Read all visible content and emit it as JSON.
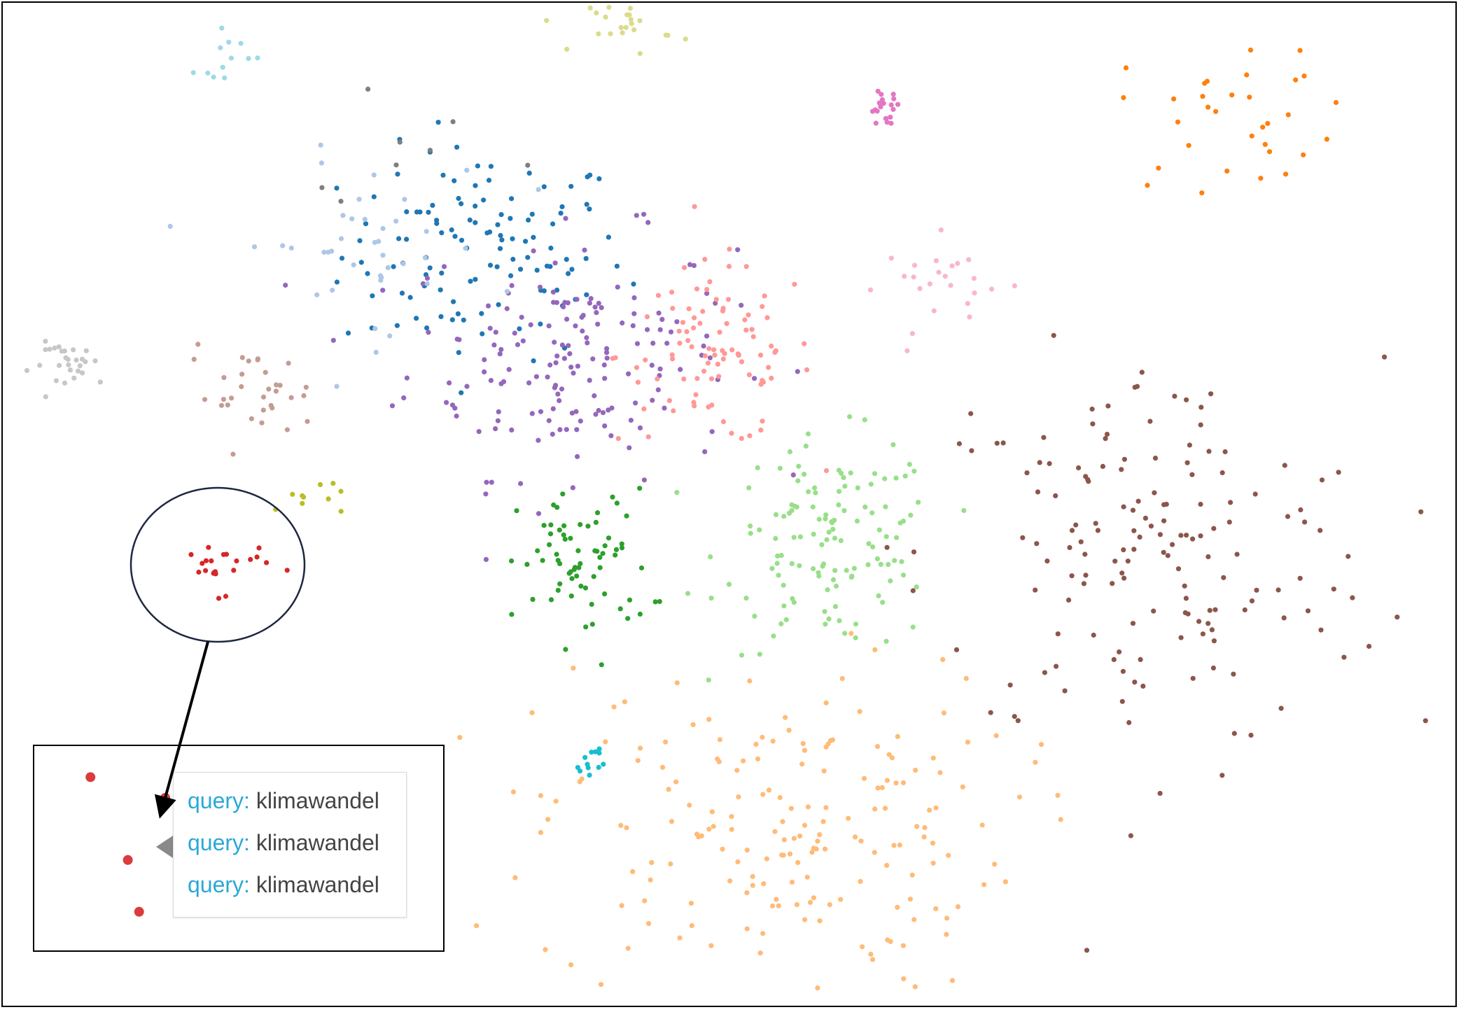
{
  "chart_data": {
    "type": "scatter",
    "title": "",
    "xlabel": "",
    "ylabel": "",
    "grid": false,
    "legend": "none",
    "xlim": [
      0,
      100
    ],
    "ylim": [
      0,
      100
    ],
    "clusters": [
      {
        "color": "#1f77b4",
        "cx": 33,
        "cy": 75,
        "n": 120,
        "sx": 6.5,
        "sy": 7
      },
      {
        "color": "#9467bd",
        "cx": 39,
        "cy": 65,
        "n": 170,
        "sx": 7.5,
        "sy": 8
      },
      {
        "color": "#ff9896",
        "cx": 49,
        "cy": 65,
        "n": 95,
        "sx": 4.5,
        "sy": 6
      },
      {
        "color": "#98df8a",
        "cx": 57,
        "cy": 46,
        "n": 130,
        "sx": 5,
        "sy": 7
      },
      {
        "color": "#8c564b",
        "cx": 79,
        "cy": 45,
        "n": 160,
        "sx": 10.5,
        "sy": 13
      },
      {
        "color": "#ffbb78",
        "cx": 53,
        "cy": 18,
        "n": 190,
        "sx": 11,
        "sy": 11
      },
      {
        "color": "#2ca02c",
        "cx": 40,
        "cy": 44,
        "n": 70,
        "sx": 3,
        "sy": 5
      },
      {
        "color": "#ff7f0e",
        "cx": 85,
        "cy": 89,
        "n": 32,
        "sx": 5.5,
        "sy": 5
      },
      {
        "color": "#aec7e8",
        "cx": 25,
        "cy": 76,
        "n": 40,
        "sx": 6,
        "sy": 6
      },
      {
        "color": "#c49c94",
        "cx": 17,
        "cy": 61,
        "n": 32,
        "sx": 3,
        "sy": 3
      },
      {
        "color": "#c7c7c7",
        "cx": 5,
        "cy": 64,
        "n": 28,
        "sx": 2,
        "sy": 1.5
      },
      {
        "color": "#dbdb8d",
        "cx": 43,
        "cy": 98,
        "n": 26,
        "sx": 2,
        "sy": 2
      },
      {
        "color": "#9edae5",
        "cx": 15.5,
        "cy": 95,
        "n": 12,
        "sx": 1.5,
        "sy": 1.5
      },
      {
        "color": "#e377c2",
        "cx": 60.5,
        "cy": 89.5,
        "n": 20,
        "sx": 0.8,
        "sy": 1.2
      },
      {
        "color": "#f7b6d2",
        "cx": 65,
        "cy": 72,
        "n": 24,
        "sx": 3,
        "sy": 3
      },
      {
        "color": "#d62728",
        "cx": 15,
        "cy": 44,
        "n": 22,
        "sx": 2.2,
        "sy": 1.8
      },
      {
        "color": "#17becf",
        "cx": 40.3,
        "cy": 24.5,
        "n": 12,
        "sx": 0.8,
        "sy": 1.2
      },
      {
        "color": "#bcbd22",
        "cx": 21,
        "cy": 51,
        "n": 10,
        "sx": 1.5,
        "sy": 1.5
      },
      {
        "color": "#7f7f7f",
        "cx": 30,
        "cy": 83,
        "n": 8,
        "sx": 6,
        "sy": 5
      }
    ],
    "zoom_points": [
      {
        "color": "#d62728",
        "x": 11.5,
        "y": 48.5
      },
      {
        "color": "#d62728",
        "x": 13.5,
        "y": 47.5
      },
      {
        "color": "#d62728",
        "x": 14.2,
        "y": 46.5
      },
      {
        "color": "#d62728",
        "x": 12.5,
        "y": 44.5
      },
      {
        "color": "#d62728",
        "x": 14.0,
        "y": 44.2
      },
      {
        "color": "#d62728",
        "x": 14.8,
        "y": 43.5
      },
      {
        "color": "#d62728",
        "x": 15.3,
        "y": 44.8
      },
      {
        "color": "#d62728",
        "x": 15.8,
        "y": 45.5
      },
      {
        "color": "#d62728",
        "x": 16.8,
        "y": 45.8
      },
      {
        "color": "#d62728",
        "x": 17.5,
        "y": 44.0
      },
      {
        "color": "#d62728",
        "x": 18.8,
        "y": 45.0
      },
      {
        "color": "#d62728",
        "x": 19.5,
        "y": 44.3
      },
      {
        "color": "#d62728",
        "x": 16.2,
        "y": 42.2
      },
      {
        "color": "#d62728",
        "x": 12.8,
        "y": 42.0
      },
      {
        "color": "#d62728",
        "x": 14.6,
        "y": 42.0
      },
      {
        "color": "#d62728",
        "x": 17.8,
        "y": 43.2
      }
    ]
  },
  "tooltip": {
    "rows": [
      {
        "key": "query:",
        "value": "klimawandel"
      },
      {
        "key": "query:",
        "value": "klimawandel"
      },
      {
        "key": "query:",
        "value": "klimawandel"
      }
    ]
  }
}
